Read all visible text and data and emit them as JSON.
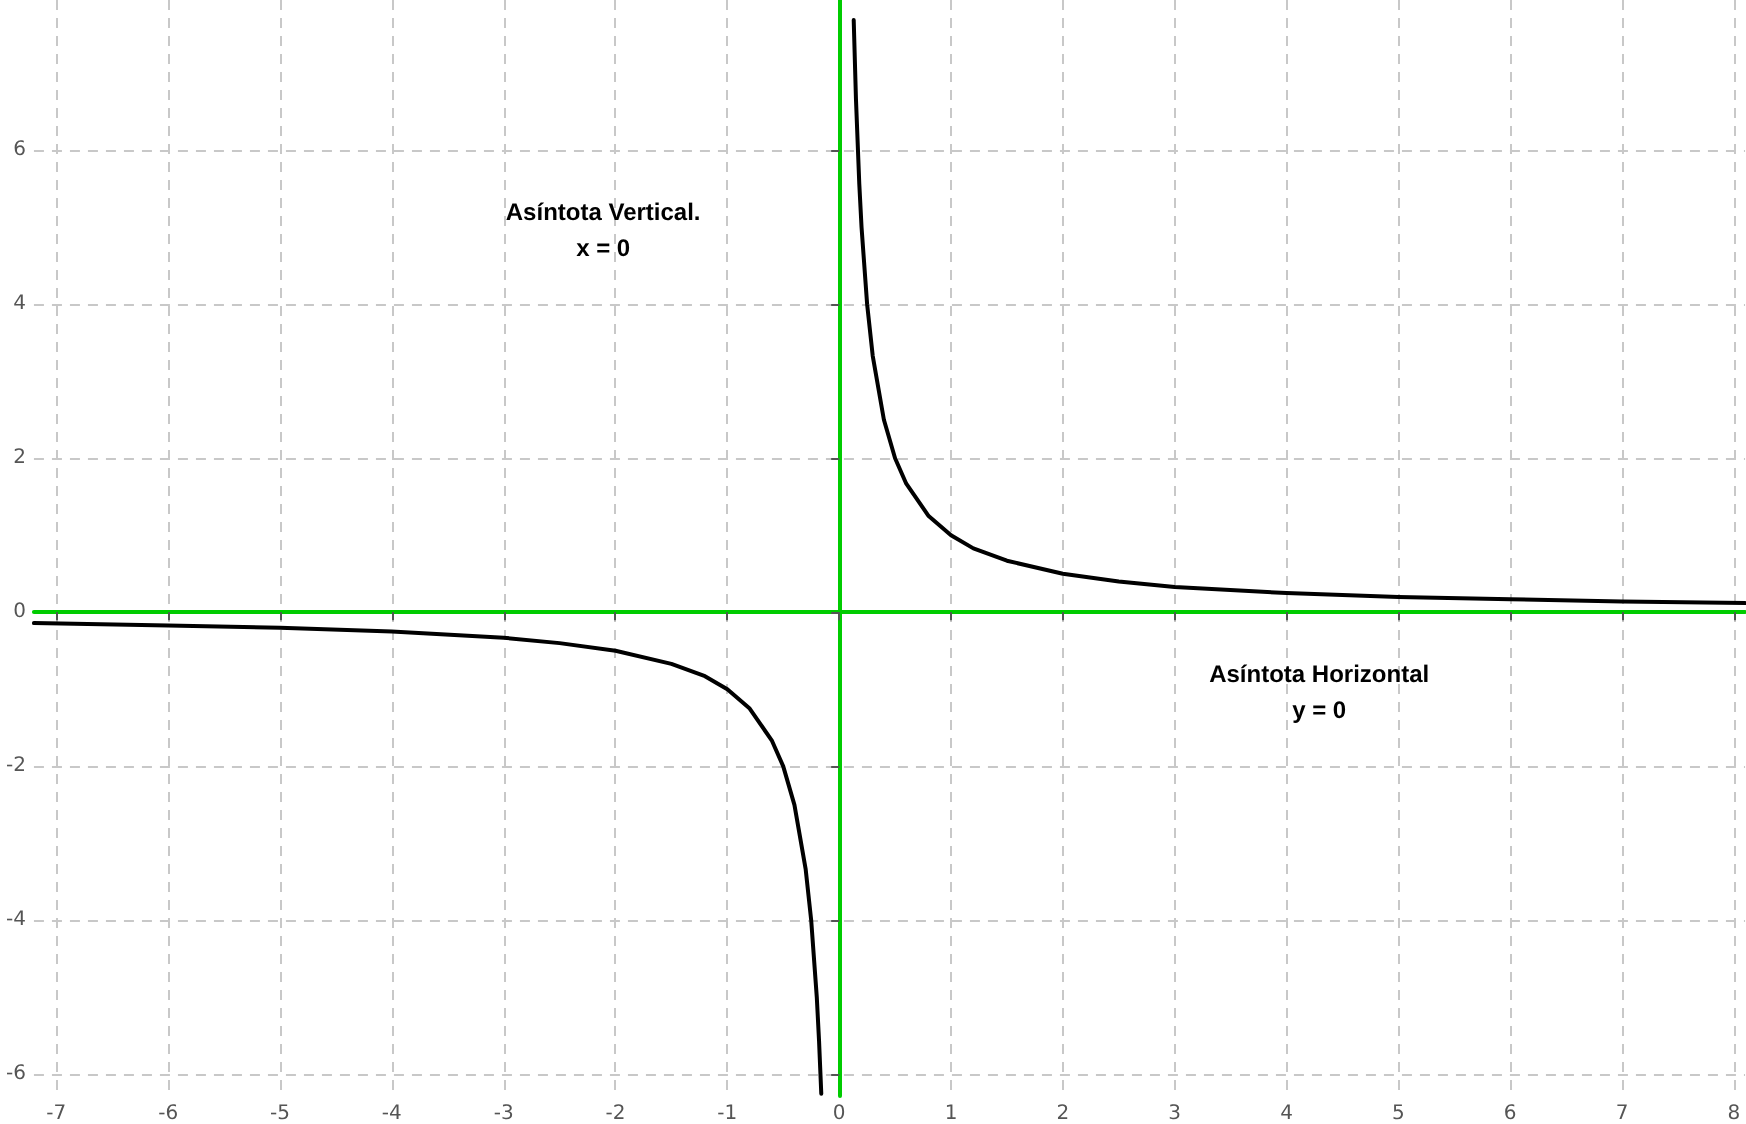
{
  "chart_data": {
    "type": "line",
    "xlim": [
      -7.2,
      8.1
    ],
    "ylim": [
      -6.28,
      7.95
    ],
    "xticks": [
      -7,
      -6,
      -5,
      -4,
      -3,
      -2,
      -1,
      0,
      1,
      2,
      3,
      4,
      5,
      6,
      7,
      8
    ],
    "yticks": [
      -6,
      -4,
      -2,
      0,
      2,
      4,
      6
    ],
    "x": [
      -7.2,
      -6,
      -5,
      -4,
      -3,
      -2.5,
      -2,
      -1.5,
      -1.2,
      -1,
      -0.8,
      -0.6,
      -0.5,
      -0.4,
      -0.3,
      -0.25,
      -0.2,
      -0.18,
      -0.16,
      0,
      0.13,
      0.15,
      0.18,
      0.2,
      0.25,
      0.3,
      0.4,
      0.5,
      0.6,
      0.8,
      1,
      1.2,
      1.5,
      2,
      2.5,
      3,
      4,
      5,
      6,
      7,
      8.1
    ],
    "series": [
      {
        "color": "#000000",
        "values": [
          -0.14,
          -0.17,
          -0.2,
          -0.25,
          -0.33,
          -0.4,
          -0.5,
          -0.67,
          -0.83,
          -1,
          -1.25,
          -1.67,
          -2,
          -2.5,
          -3.33,
          -4,
          -5,
          -5.56,
          -6.25,
          null,
          7.69,
          6.67,
          5.56,
          5,
          4,
          3.33,
          2.5,
          2,
          1.67,
          1.25,
          1,
          0.83,
          0.67,
          0.5,
          0.4,
          0.33,
          0.25,
          0.2,
          0.17,
          0.14,
          0.12
        ]
      }
    ],
    "annotations": [
      "Asíntota Vertical.\nx = 0",
      "Asíntota Horizontal\ny = 0"
    ],
    "grid": true,
    "marker": "none",
    "line_style": "solid"
  }
}
